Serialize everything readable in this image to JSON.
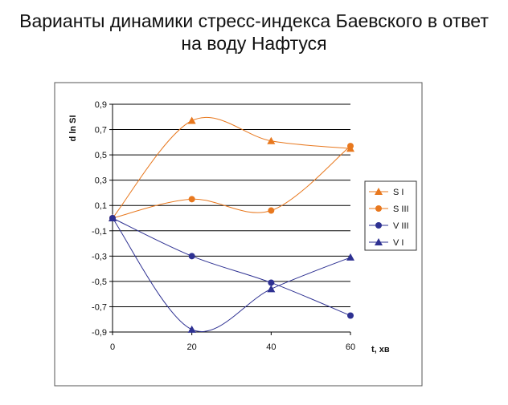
{
  "chart_data": {
    "type": "line",
    "title": [
      "Варианты динамики стресс-индекса Баевского в ответ",
      "на воду Нафтуся"
    ],
    "xlabel": "t, хв",
    "ylabel": "d ln SI",
    "x": [
      0,
      20,
      40,
      60
    ],
    "xticks": [
      "0",
      "20",
      "40",
      "60"
    ],
    "yticks": [
      "0,9",
      "0,7",
      "0,5",
      "0,3",
      "0,1",
      "-0,1",
      "-0,3",
      "-0,5",
      "-0,7",
      "-0,9"
    ],
    "ylim": [
      -0.9,
      0.9
    ],
    "xlim": [
      0,
      60
    ],
    "grid": "horizontal",
    "legend_position": "right",
    "series": [
      {
        "name": "S I",
        "values": [
          0.0,
          0.77,
          0.61,
          0.55
        ],
        "color": "#e8781e",
        "marker": "triangle"
      },
      {
        "name": "S III",
        "values": [
          0.0,
          0.15,
          0.06,
          0.57
        ],
        "color": "#e8781e",
        "marker": "circle"
      },
      {
        "name": "V III",
        "values": [
          0.0,
          -0.3,
          -0.51,
          -0.77
        ],
        "color": "#2e3192",
        "marker": "circle"
      },
      {
        "name": "V I",
        "values": [
          0.0,
          -0.88,
          -0.56,
          -0.31
        ],
        "color": "#2e3192",
        "marker": "triangle"
      }
    ]
  }
}
